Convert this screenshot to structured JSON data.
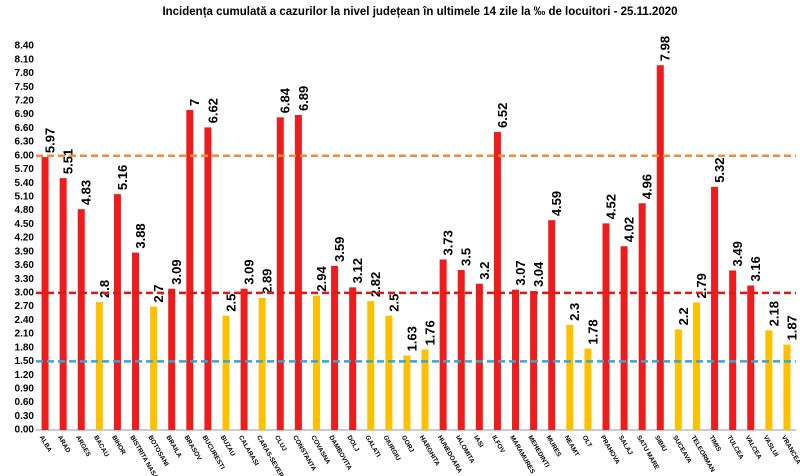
{
  "chart_data": {
    "type": "bar",
    "title": "Incidența cumulată a cazurilor la nivel județean în ultimele 14 zile la ‰ de locuitori - 25.11.2020",
    "categories": [
      "ALBA",
      "ARAD",
      "ARGES",
      "BACAU",
      "BIHOR",
      "BISTRITA NASAUD",
      "BOTOSANI",
      "BRAILA",
      "BRASOV",
      "BUCURESTI",
      "BUZAU",
      "CALARASI",
      "CARAS-SEVERIN",
      "CLUJ",
      "CONSTANTA",
      "COVASNA",
      "DAMBOVITA",
      "DOLJ",
      "GALATI",
      "GIURGIU",
      "GORJ",
      "HARGHITA",
      "HUNEDOARA",
      "IALOMITA",
      "IASI",
      "ILFOV",
      "MARAMURES",
      "MEHEDINTI",
      "MURES",
      "NEAMT",
      "OLT",
      "PRAHOVA",
      "SALAJ",
      "SATU MARE",
      "SIBIU",
      "SUCEAVA",
      "TELEORMAN",
      "TIMIS",
      "TULCEA",
      "VALCEA",
      "VASLUI",
      "VRANCEA"
    ],
    "values": [
      5.97,
      5.51,
      4.83,
      2.8,
      5.16,
      3.88,
      2.7,
      3.09,
      7,
      6.62,
      2.5,
      3.09,
      2.89,
      6.84,
      6.89,
      2.94,
      3.59,
      3.12,
      2.82,
      2.5,
      1.63,
      1.76,
      3.73,
      3.5,
      3.2,
      6.52,
      3.07,
      3.04,
      4.59,
      2.3,
      1.78,
      4.52,
      4.02,
      4.96,
      7.98,
      2.2,
      2.79,
      5.32,
      3.49,
      3.16,
      2.18,
      1.87
    ],
    "colors": [
      "#ee1c1c",
      "#ee1c1c",
      "#ee1c1c",
      "#ffc000",
      "#ee1c1c",
      "#ee1c1c",
      "#ffc000",
      "#ee1c1c",
      "#ee1c1c",
      "#ee1c1c",
      "#ffc000",
      "#ee1c1c",
      "#ffc000",
      "#ee1c1c",
      "#ee1c1c",
      "#ffc000",
      "#ee1c1c",
      "#ee1c1c",
      "#ffc000",
      "#ffc000",
      "#ffc000",
      "#ffc000",
      "#ee1c1c",
      "#ee1c1c",
      "#ee1c1c",
      "#ee1c1c",
      "#ee1c1c",
      "#ee1c1c",
      "#ee1c1c",
      "#ffc000",
      "#ffc000",
      "#ee1c1c",
      "#ee1c1c",
      "#ee1c1c",
      "#ee1c1c",
      "#ffc000",
      "#ffc000",
      "#ee1c1c",
      "#ee1c1c",
      "#ee1c1c",
      "#ffc000",
      "#ffc000"
    ],
    "ylim": [
      0,
      8.4
    ],
    "yticks": [
      {
        "value": 0,
        "label": "0.00"
      },
      {
        "value": 0.3,
        "label": "0.30"
      },
      {
        "value": 0.6,
        "label": "0.60"
      },
      {
        "value": 0.9,
        "label": "0.90"
      },
      {
        "value": 1.2,
        "label": "1.20"
      },
      {
        "value": 1.5,
        "label": "1.50"
      },
      {
        "value": 1.8,
        "label": "1.80"
      },
      {
        "value": 2.1,
        "label": "2.10"
      },
      {
        "value": 2.4,
        "label": "2.40"
      },
      {
        "value": 2.7,
        "label": "2.70"
      },
      {
        "value": 3,
        "label": "3.00"
      },
      {
        "value": 3.3,
        "label": "3.30"
      },
      {
        "value": 3.6,
        "label": "3.60"
      },
      {
        "value": 3.9,
        "label": "3.90"
      },
      {
        "value": 4.2,
        "label": "4.20"
      },
      {
        "value": 4.5,
        "label": "4.50"
      },
      {
        "value": 4.8,
        "label": "4.80"
      },
      {
        "value": 5.1,
        "label": "5.10"
      },
      {
        "value": 5.4,
        "label": "5.40"
      },
      {
        "value": 5.7,
        "label": "5.70"
      },
      {
        "value": 6,
        "label": "6.00"
      },
      {
        "value": 6.3,
        "label": "6.30"
      },
      {
        "value": 6.6,
        "label": "6.60"
      },
      {
        "value": 6.9,
        "label": "6.90"
      },
      {
        "value": 7.2,
        "label": "7.20"
      },
      {
        "value": 7.5,
        "label": "7.50"
      },
      {
        "value": 7.8,
        "label": "7.80"
      },
      {
        "value": 8.1,
        "label": "8.10"
      },
      {
        "value": 8.4,
        "label": "8.40"
      }
    ],
    "reference_lines": [
      {
        "value": 6,
        "color": "#f08c3c"
      },
      {
        "value": 3,
        "color": "#e01818"
      },
      {
        "value": 1.5,
        "color": "#2ea8e0"
      }
    ]
  }
}
